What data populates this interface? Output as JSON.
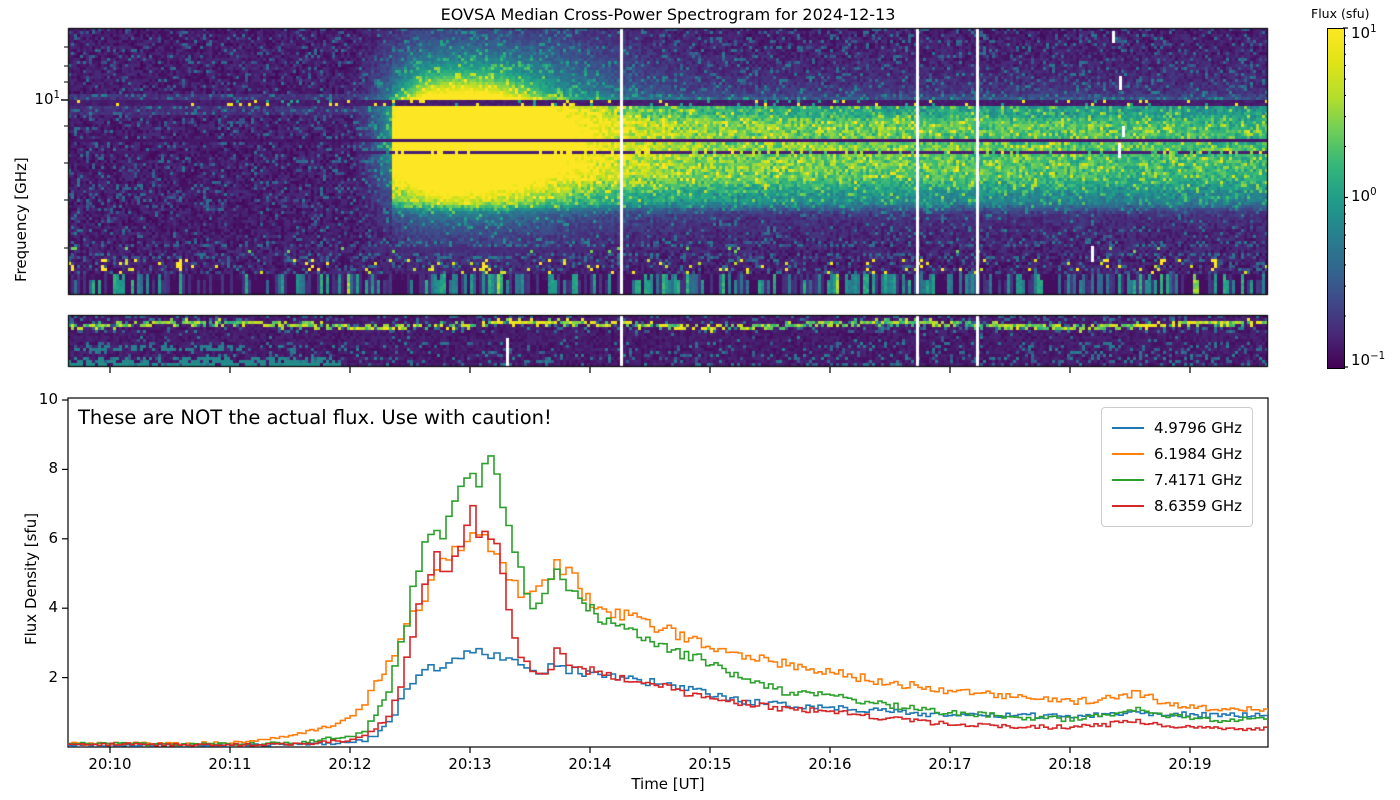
{
  "title": "EOVSA Median Cross-Power Spectrogram for 2024-12-13",
  "colorbar": {
    "label": "Flux (sfu)",
    "ticks": [
      {
        "base": "10",
        "exp": "1"
      },
      {
        "base": "10",
        "exp": "0"
      },
      {
        "base": "10",
        "exp": "−1"
      }
    ]
  },
  "freq_axis": {
    "label": "Frequency [GHz]",
    "major_tick": {
      "base": "10",
      "exp": "1"
    }
  },
  "chart_data": [
    {
      "type": "heatmap",
      "title": "EOVSA Median Cross-Power Spectrogram for 2024-12-13",
      "ylabel": "Frequency [GHz]",
      "yscale": "log",
      "ytick_labels": [
        "10^1"
      ],
      "colorbar": {
        "label": "Flux (sfu)",
        "scale": "log",
        "ticks": [
          "10^1",
          "10^0",
          "10^-1"
        ],
        "range_sfu": [
          0.1,
          10
        ]
      },
      "x_range_ut": [
        "20:09:39",
        "20:19:39"
      ],
      "panels": [
        "main high-frequency panel (~3-18 GHz)",
        "narrow low-frequency strip"
      ],
      "burst": {
        "onset_ut": "20:12:20",
        "peak_ut": "20:12:50-20:13:15",
        "peak_freq_ghz": "~7",
        "peak_flux_sfu": "~10"
      },
      "flagged_time_columns_ut": [
        "20:14:15",
        "20:16:43",
        "20:17:13"
      ],
      "persistent_bands": "horizontal green emission bands between ~5 and ~10 GHz after burst onset, decaying slowly to 20:19",
      "rfi_lines": "dark flagged channels near 10 and 7 GHz with yellow speckles; speckled/striped low-frequency rows"
    },
    {
      "type": "line",
      "annotation": "These are NOT the actual flux. Use with caution!",
      "xlabel": "Time [UT]",
      "ylabel": "Flux Density [sfu]",
      "x_tick_labels": [
        "20:10",
        "20:11",
        "20:12",
        "20:13",
        "20:14",
        "20:15",
        "20:16",
        "20:17",
        "20:18",
        "20:19"
      ],
      "y_tick_labels": [
        2,
        4,
        6,
        8,
        10
      ],
      "ylim": [
        0,
        10
      ],
      "xlim_minutes_after_2000": [
        9.65,
        19.65
      ],
      "legend_position": "upper right",
      "x_minutes": [
        9.65,
        10.0,
        10.5,
        11.0,
        11.3,
        11.6,
        11.8,
        12.0,
        12.1,
        12.2,
        12.3,
        12.4,
        12.5,
        12.55,
        12.6,
        12.65,
        12.7,
        12.75,
        12.8,
        12.85,
        12.9,
        12.95,
        13.0,
        13.05,
        13.1,
        13.15,
        13.2,
        13.25,
        13.3,
        13.35,
        13.4,
        13.45,
        13.5,
        13.55,
        13.6,
        13.65,
        13.7,
        13.75,
        13.8,
        13.9,
        14.0,
        14.1,
        14.25,
        14.5,
        14.75,
        15.0,
        15.3,
        15.6,
        16.0,
        16.4,
        16.8,
        17.2,
        17.6,
        18.0,
        18.3,
        18.55,
        18.8,
        19.0,
        19.3,
        19.65
      ],
      "series": [
        {
          "name": "4.9796 GHz",
          "color": "#1f77b4",
          "values": [
            0.05,
            0.05,
            0.05,
            0.05,
            0.07,
            0.08,
            0.1,
            0.15,
            0.2,
            0.35,
            0.7,
            1.3,
            1.9,
            2.05,
            2.15,
            2.25,
            2.3,
            2.4,
            2.45,
            2.5,
            2.55,
            2.65,
            2.75,
            2.85,
            2.8,
            2.7,
            2.6,
            2.55,
            2.5,
            2.4,
            2.3,
            2.2,
            2.1,
            2.15,
            2.25,
            2.3,
            2.3,
            2.25,
            2.2,
            2.15,
            2.2,
            2.1,
            2.0,
            1.85,
            1.7,
            1.5,
            1.3,
            1.2,
            1.15,
            1.05,
            0.95,
            0.9,
            0.9,
            0.9,
            0.95,
            1.0,
            0.95,
            0.95,
            0.9,
            0.95
          ]
        },
        {
          "name": "6.1984 GHz",
          "color": "#ff7f0e",
          "values": [
            0.1,
            0.1,
            0.1,
            0.12,
            0.2,
            0.4,
            0.6,
            0.9,
            1.3,
            1.8,
            2.4,
            3.1,
            3.8,
            4.1,
            4.4,
            4.7,
            5.0,
            5.2,
            5.4,
            5.6,
            5.75,
            5.9,
            5.95,
            6.0,
            6.05,
            5.9,
            5.6,
            5.2,
            4.9,
            4.6,
            4.4,
            4.25,
            4.3,
            4.5,
            4.8,
            5.0,
            5.2,
            5.1,
            4.95,
            4.6,
            4.2,
            4.0,
            3.8,
            3.5,
            3.2,
            2.95,
            2.65,
            2.4,
            2.15,
            1.9,
            1.7,
            1.55,
            1.4,
            1.3,
            1.4,
            1.55,
            1.25,
            1.15,
            1.1,
            1.1
          ]
        },
        {
          "name": "7.4171 GHz",
          "color": "#2ca02c",
          "values": [
            0.1,
            0.1,
            0.08,
            0.08,
            0.1,
            0.15,
            0.25,
            0.35,
            0.5,
            0.9,
            1.6,
            2.9,
            4.4,
            5.3,
            5.9,
            6.3,
            6.45,
            6.25,
            6.5,
            7.0,
            7.7,
            8.05,
            8.1,
            7.6,
            7.8,
            8.0,
            7.8,
            7.2,
            6.4,
            5.6,
            5.0,
            4.5,
            4.1,
            3.95,
            4.2,
            4.6,
            4.9,
            4.8,
            4.6,
            4.3,
            4.0,
            3.7,
            3.4,
            3.0,
            2.7,
            2.4,
            1.9,
            1.6,
            1.45,
            1.25,
            1.05,
            0.95,
            0.85,
            0.8,
            0.95,
            1.1,
            0.9,
            0.85,
            0.75,
            0.85
          ]
        },
        {
          "name": "8.6359 GHz",
          "color": "#d62728",
          "values": [
            0.08,
            0.08,
            0.06,
            0.06,
            0.08,
            0.1,
            0.15,
            0.2,
            0.3,
            0.5,
            0.9,
            1.8,
            3.2,
            4.0,
            4.6,
            5.0,
            5.45,
            5.1,
            4.95,
            5.3,
            5.8,
            6.4,
            6.65,
            6.3,
            6.1,
            6.15,
            5.8,
            5.0,
            4.0,
            3.1,
            2.6,
            2.35,
            2.25,
            2.2,
            2.15,
            2.3,
            2.7,
            2.6,
            2.3,
            2.2,
            2.2,
            2.1,
            2.0,
            1.8,
            1.6,
            1.4,
            1.25,
            1.1,
            1.05,
            0.85,
            0.7,
            0.62,
            0.58,
            0.57,
            0.65,
            0.75,
            0.6,
            0.58,
            0.52,
            0.55
          ]
        }
      ]
    }
  ]
}
